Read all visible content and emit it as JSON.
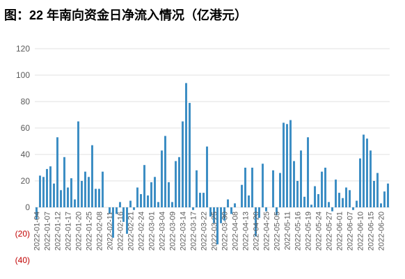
{
  "chart_data": {
    "type": "bar",
    "title": "图：22 年南向资金日净流入情况（亿港元）",
    "categories": [
      "2022-01-04",
      null,
      null,
      "2022-01-07",
      null,
      null,
      "2022-01-12",
      null,
      null,
      "2022-01-17",
      null,
      null,
      "2022-01-20",
      null,
      null,
      "2022-01-25",
      null,
      null,
      "2022-02-08",
      null,
      null,
      "2022-02-11",
      null,
      null,
      "2022-02-16",
      null,
      null,
      "2022-02-21",
      null,
      null,
      "2022-02-24",
      null,
      null,
      "2022-03-01",
      null,
      null,
      "2022-03-04",
      null,
      null,
      "2022-03-09",
      null,
      null,
      "2022-03-14",
      null,
      null,
      "2022-03-17",
      null,
      null,
      "2022-03-22",
      null,
      null,
      "2022-03-25",
      null,
      null,
      "2022-03-30",
      null,
      null,
      "2022-04-08",
      null,
      null,
      "2022-04-13",
      null,
      null,
      "2022-04-20",
      null,
      null,
      "2022-04-25",
      null,
      null,
      "2022-05-05",
      null,
      null,
      "2022-05-11",
      null,
      null,
      "2022-05-16",
      null,
      null,
      "2022-05-19",
      null,
      null,
      "2022-05-24",
      null,
      null,
      "2022-05-27",
      null,
      null,
      "2022-06-01",
      null,
      null,
      "2022-06-07",
      null,
      null,
      "2022-06-10",
      null,
      null,
      "2022-06-15",
      null,
      null,
      "2022-06-20",
      null,
      null
    ],
    "values": [
      -9,
      24,
      23,
      29,
      31,
      18,
      53,
      13,
      38,
      15,
      22,
      6,
      65,
      20,
      27,
      23,
      47,
      14,
      14,
      27,
      0,
      -5,
      -23,
      -5,
      4,
      -11,
      -20,
      5,
      -2,
      15,
      10,
      32,
      9,
      19,
      23,
      4,
      43,
      54,
      19,
      4,
      35,
      38,
      65,
      94,
      79,
      -2,
      28,
      11,
      11,
      46,
      -7,
      -12,
      -28,
      -12,
      -10,
      6,
      -5,
      3,
      0,
      17,
      30,
      9,
      30,
      -22,
      -8,
      33,
      -3,
      0,
      28,
      -6,
      26,
      64,
      63,
      66,
      35,
      20,
      43,
      8,
      53,
      2,
      16,
      10,
      27,
      30,
      4,
      -3,
      21,
      11,
      7,
      15,
      13,
      -2,
      5,
      37,
      55,
      52,
      43,
      20,
      26,
      3,
      12,
      18
    ],
    "color": "#3d8ec4",
    "ylim": [
      -40,
      120
    ],
    "yticks": [
      {
        "value": -40,
        "label": "(40)"
      },
      {
        "value": -20,
        "label": "(20)"
      },
      0,
      20,
      40,
      60,
      80,
      100,
      120
    ],
    "negative_tick_color": "#c00000",
    "grid": true
  }
}
